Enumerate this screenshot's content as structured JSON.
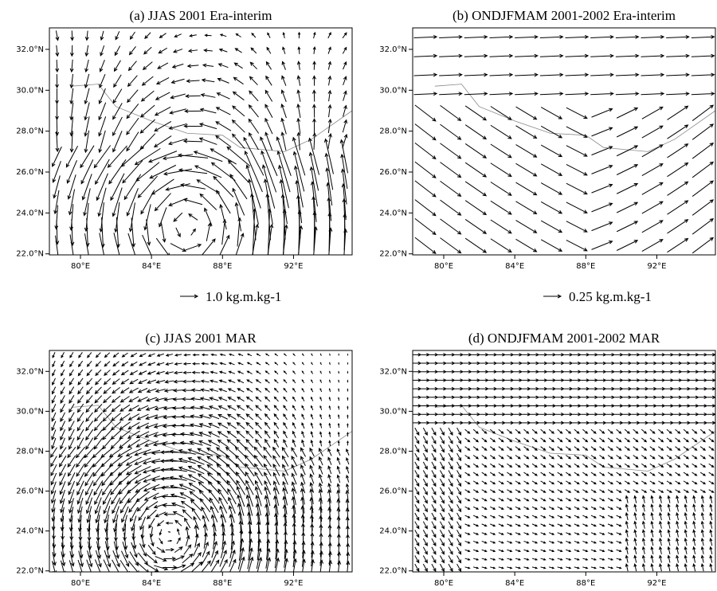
{
  "map": {
    "xlim": [
      78.25,
      95.3
    ],
    "ylim": [
      21.95,
      33.05
    ],
    "xticks": [
      {
        "value": 80,
        "label": "80°E"
      },
      {
        "value": 84,
        "label": "84°E"
      },
      {
        "value": 88,
        "label": "88°E"
      },
      {
        "value": 92,
        "label": "92°E"
      }
    ],
    "yticks": [
      {
        "value": 22,
        "label": "22.0°N"
      },
      {
        "value": 24,
        "label": "24.0°N"
      },
      {
        "value": 26,
        "label": "26.0°N"
      },
      {
        "value": 28,
        "label": "28.0°N"
      },
      {
        "value": 30,
        "label": "30.0°N"
      },
      {
        "value": 32,
        "label": "32.0°N"
      }
    ]
  },
  "panels": [
    {
      "title": "(a) JJAS 2001 Era-interim",
      "reference_label": "1.0 kg.m.kg-1"
    },
    {
      "title": "(b) ONDJFMAM 2001-2002 Era-interim",
      "reference_label": "0.25 kg.m.kg-1"
    },
    {
      "title": "(c) JJAS 2001 MAR"
    },
    {
      "title": "(d) ONDJFMAM 2001-2002 MAR"
    }
  ]
}
